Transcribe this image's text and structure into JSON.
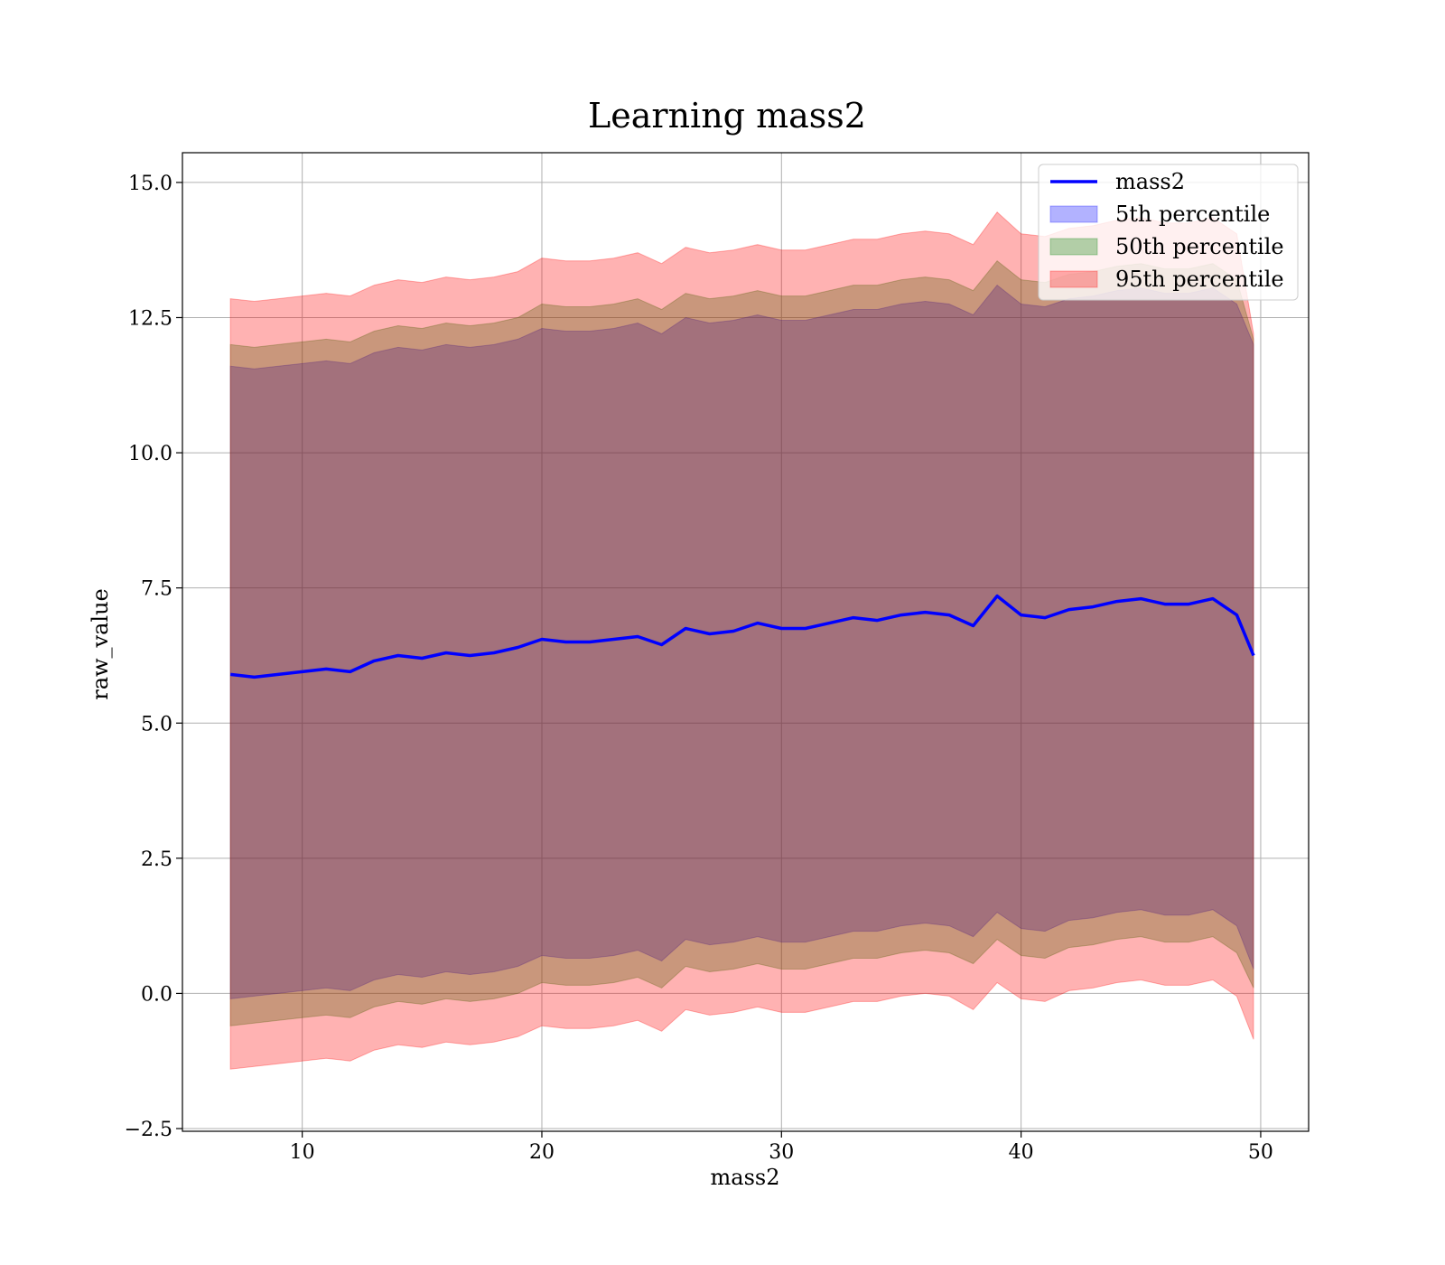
{
  "chart_data": {
    "type": "area",
    "title": "Learning mass2",
    "xlabel": "mass2",
    "ylabel": "raw_value",
    "xlim": [
      5,
      52
    ],
    "ylim": [
      -2.55,
      15.55
    ],
    "grid": true,
    "legend_placement": "top-right",
    "x_ticks": [
      10,
      20,
      30,
      40,
      50
    ],
    "x_tick_labels": [
      "10",
      "20",
      "30",
      "40",
      "50"
    ],
    "y_ticks": [
      -2.5,
      0.0,
      2.5,
      5.0,
      7.5,
      10.0,
      12.5,
      15.0
    ],
    "y_tick_labels": [
      "−2.5",
      "0.0",
      "2.5",
      "5.0",
      "7.5",
      "10.0",
      "12.5",
      "15.0"
    ],
    "x": [
      7,
      8,
      9,
      10,
      11,
      12,
      13,
      14,
      15,
      16,
      17,
      18,
      19,
      20,
      21,
      22,
      23,
      24,
      25,
      26,
      27,
      28,
      29,
      30,
      31,
      32,
      33,
      34,
      35,
      36,
      37,
      38,
      39,
      40,
      41,
      42,
      43,
      44,
      45,
      46,
      47,
      48,
      49,
      49.7
    ],
    "series": [
      {
        "name": "mass2",
        "kind": "line",
        "color": "#0000ff",
        "values": [
          5.9,
          5.85,
          5.9,
          5.95,
          6.0,
          5.95,
          6.15,
          6.25,
          6.2,
          6.3,
          6.25,
          6.3,
          6.4,
          6.55,
          6.5,
          6.5,
          6.55,
          6.6,
          6.45,
          6.75,
          6.65,
          6.7,
          6.85,
          6.75,
          6.75,
          6.85,
          6.95,
          6.9,
          7.0,
          7.05,
          7.0,
          6.8,
          7.35,
          7.0,
          6.95,
          7.1,
          7.15,
          7.25,
          7.3,
          7.2,
          7.2,
          7.3,
          7.0,
          6.25
        ]
      },
      {
        "name": "5th percentile",
        "kind": "band",
        "color": "#0000ff",
        "low": [
          -0.1,
          -0.05,
          0.0,
          0.05,
          0.1,
          0.05,
          0.25,
          0.35,
          0.3,
          0.4,
          0.35,
          0.4,
          0.5,
          0.7,
          0.65,
          0.65,
          0.7,
          0.8,
          0.6,
          1.0,
          0.9,
          0.95,
          1.05,
          0.95,
          0.95,
          1.05,
          1.15,
          1.15,
          1.25,
          1.3,
          1.25,
          1.05,
          1.5,
          1.2,
          1.15,
          1.35,
          1.4,
          1.5,
          1.55,
          1.45,
          1.45,
          1.55,
          1.25,
          0.45
        ],
        "high": [
          11.6,
          11.55,
          11.6,
          11.65,
          11.7,
          11.65,
          11.85,
          11.95,
          11.9,
          12.0,
          11.95,
          12.0,
          12.1,
          12.3,
          12.25,
          12.25,
          12.3,
          12.4,
          12.2,
          12.5,
          12.4,
          12.45,
          12.55,
          12.45,
          12.45,
          12.55,
          12.65,
          12.65,
          12.75,
          12.8,
          12.75,
          12.55,
          13.1,
          12.75,
          12.7,
          12.85,
          12.9,
          13.0,
          13.05,
          12.95,
          12.95,
          13.05,
          12.75,
          12.0
        ]
      },
      {
        "name": "50th percentile",
        "kind": "band",
        "color": "#008000",
        "low": [
          -0.6,
          -0.55,
          -0.5,
          -0.45,
          -0.4,
          -0.45,
          -0.25,
          -0.15,
          -0.2,
          -0.1,
          -0.15,
          -0.1,
          0.0,
          0.2,
          0.15,
          0.15,
          0.2,
          0.3,
          0.1,
          0.5,
          0.4,
          0.45,
          0.55,
          0.45,
          0.45,
          0.55,
          0.65,
          0.65,
          0.75,
          0.8,
          0.75,
          0.55,
          1.0,
          0.7,
          0.65,
          0.85,
          0.9,
          1.0,
          1.05,
          0.95,
          0.95,
          1.05,
          0.75,
          0.1
        ],
        "high": [
          12.0,
          11.95,
          12.0,
          12.05,
          12.1,
          12.05,
          12.25,
          12.35,
          12.3,
          12.4,
          12.35,
          12.4,
          12.5,
          12.75,
          12.7,
          12.7,
          12.75,
          12.85,
          12.65,
          12.95,
          12.85,
          12.9,
          13.0,
          12.9,
          12.9,
          13.0,
          13.1,
          13.1,
          13.2,
          13.25,
          13.2,
          13.0,
          13.55,
          13.2,
          13.15,
          13.3,
          13.35,
          13.45,
          13.5,
          13.4,
          13.4,
          13.5,
          13.2,
          12.1
        ]
      },
      {
        "name": "95th percentile",
        "kind": "band",
        "color": "#ff0000",
        "low": [
          -1.4,
          -1.35,
          -1.3,
          -1.25,
          -1.2,
          -1.25,
          -1.05,
          -0.95,
          -1.0,
          -0.9,
          -0.95,
          -0.9,
          -0.8,
          -0.6,
          -0.65,
          -0.65,
          -0.6,
          -0.5,
          -0.7,
          -0.3,
          -0.4,
          -0.35,
          -0.25,
          -0.35,
          -0.35,
          -0.25,
          -0.15,
          -0.15,
          -0.05,
          0.0,
          -0.05,
          -0.3,
          0.2,
          -0.1,
          -0.15,
          0.05,
          0.1,
          0.2,
          0.25,
          0.15,
          0.15,
          0.25,
          -0.05,
          -0.85
        ],
        "high": [
          12.85,
          12.8,
          12.85,
          12.9,
          12.95,
          12.9,
          13.1,
          13.2,
          13.15,
          13.25,
          13.2,
          13.25,
          13.35,
          13.6,
          13.55,
          13.55,
          13.6,
          13.7,
          13.5,
          13.8,
          13.7,
          13.75,
          13.85,
          13.75,
          13.75,
          13.85,
          13.95,
          13.95,
          14.05,
          14.1,
          14.05,
          13.85,
          14.45,
          14.05,
          14.0,
          14.15,
          14.2,
          14.3,
          14.35,
          14.25,
          14.25,
          14.35,
          14.05,
          12.2
        ]
      }
    ]
  }
}
